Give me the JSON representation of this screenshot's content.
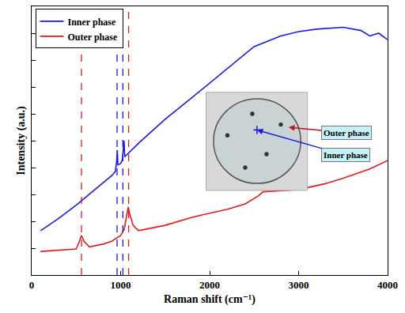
{
  "chart_data": {
    "type": "line",
    "x_label": "Raman shift (cm⁻¹)",
    "y_label": "Intensity (a.u.)",
    "xlim": [
      0,
      4000
    ],
    "xticks": [
      0,
      1000,
      2000,
      3000,
      4000
    ],
    "ylim": [
      0,
      100
    ],
    "yticks": [
      0,
      10,
      20,
      30,
      40,
      50,
      60,
      70,
      80,
      90,
      100
    ],
    "tick_labels": "x",
    "legend": "top left",
    "grid": false,
    "series": [
      {
        "name": "Inner phase",
        "color": "#1a1ae0",
        "x": [
          100,
          300,
          500,
          700,
          900,
          940,
          955,
          962,
          970,
          1000,
          1020,
          1030,
          1038,
          1046,
          1060,
          1200,
          1500,
          1800,
          2000,
          2200,
          2500,
          2800,
          3000,
          3200,
          3500,
          3700,
          3800,
          3900,
          4000
        ],
        "values": [
          16.5,
          21,
          26,
          31.5,
          37,
          38.5,
          42,
          46.5,
          41,
          41.5,
          43,
          47,
          50,
          44,
          44.5,
          49,
          58,
          66,
          71.5,
          77,
          85,
          89,
          90.6,
          91.5,
          92.2,
          91,
          89,
          90,
          87.6
        ]
      },
      {
        "name": "Outer phase",
        "color": "#e41a1a",
        "x": [
          100,
          300,
          500,
          530,
          560,
          590,
          650,
          800,
          900,
          1000,
          1040,
          1070,
          1085,
          1100,
          1140,
          1200,
          1500,
          1800,
          2000,
          2200,
          2400,
          2550,
          2600,
          3000,
          3300,
          3500,
          3800,
          4000
        ],
        "values": [
          8.8,
          9.3,
          9.7,
          12,
          14.7,
          12.5,
          10.5,
          11.5,
          12.6,
          14.7,
          17,
          22.5,
          25.3,
          23,
          18.5,
          16.5,
          18.5,
          21.5,
          23,
          24.5,
          26.5,
          29.5,
          31,
          31.8,
          34,
          36,
          39.5,
          42.6
        ]
      }
    ],
    "reference_lines": [
      {
        "x": 560,
        "color": "#e41a1a"
      },
      {
        "x": 960,
        "color": "#1a1ae0"
      },
      {
        "x": 1025,
        "color": "#1a1ae0"
      },
      {
        "x": 1090,
        "color": "#e41a1a"
      }
    ],
    "annotations": [
      {
        "text": "Outer phase",
        "color": "#c0101a"
      },
      {
        "text": "Inner phase",
        "color": "#1a1ae0"
      }
    ]
  }
}
